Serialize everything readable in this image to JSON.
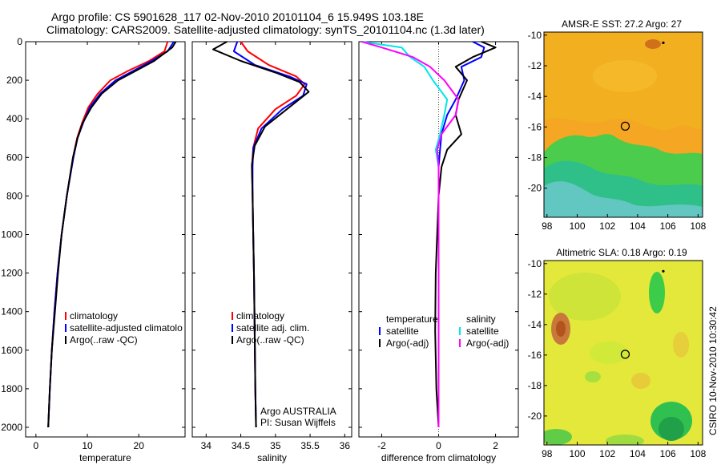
{
  "header": {
    "title_line1": "Argo profile: CS 5901628_117 02-Nov-2010 20101104_6 15.949S 103.18E",
    "title_line2": "Climatology: CARS2009. Satellite-adjusted climatology: synTS_20101104.nc (1.3d later)"
  },
  "credit": "CSIRO 10-Nov-2010 10:30:42",
  "colors": {
    "climatology": "#ff0000",
    "satellite": "#0000ff",
    "argo": "#000000",
    "salinity_satellite": "#00e5ee",
    "salinity_argo": "#ff00ff"
  },
  "chart_data": [
    {
      "type": "line",
      "id": "temperature",
      "xlabel": "temperature",
      "ylabel": "",
      "xlim": [
        -2,
        29
      ],
      "ylim": [
        2050,
        0
      ],
      "xticks": [
        0,
        10,
        20
      ],
      "yticks": [
        0,
        200,
        400,
        600,
        800,
        1000,
        1200,
        1400,
        1600,
        1800,
        2000
      ],
      "legend": [
        "climatology",
        "satellite-adjusted climatolo",
        "Argo(..raw -QC)"
      ],
      "legend_position": "lower-right",
      "series": [
        {
          "name": "climatology",
          "color": "#ff0000",
          "x": [
            25.6,
            25.0,
            22.0,
            18.0,
            14.5,
            12.0,
            10.2,
            9.0,
            8.0,
            7.2,
            6.0,
            5.0,
            4.2,
            3.6,
            3.1,
            2.7,
            2.4
          ],
          "y": [
            0,
            50,
            100,
            150,
            200,
            270,
            340,
            420,
            500,
            600,
            800,
            1000,
            1200,
            1400,
            1600,
            1800,
            2000
          ]
        },
        {
          "name": "satellite-adjusted climatology",
          "color": "#0000ff",
          "x": [
            26.8,
            25.6,
            22.5,
            19.0,
            15.5,
            12.5,
            10.5,
            9.2,
            8.1,
            7.3,
            6.0,
            5.0,
            4.2,
            3.6,
            3.1,
            2.7,
            2.4
          ],
          "y": [
            0,
            50,
            100,
            150,
            200,
            270,
            340,
            420,
            500,
            600,
            800,
            1000,
            1200,
            1400,
            1600,
            1800,
            2000
          ]
        },
        {
          "name": "Argo(..raw -QC)",
          "color": "#000000",
          "x": [
            27.2,
            26.5,
            23.0,
            19.5,
            16.0,
            12.8,
            10.8,
            9.1,
            8.1,
            7.2,
            6.0,
            5.0,
            4.3,
            3.7,
            3.1,
            2.7,
            2.4
          ],
          "y": [
            0,
            30,
            100,
            150,
            200,
            270,
            340,
            420,
            500,
            600,
            800,
            1000,
            1200,
            1400,
            1600,
            1800,
            2000
          ]
        }
      ]
    },
    {
      "type": "line",
      "id": "salinity",
      "xlabel": "salinity",
      "ylabel": "",
      "xlim": [
        33.8,
        36.1
      ],
      "ylim": [
        2050,
        0
      ],
      "xticks": [
        34,
        34.5,
        35,
        35.5,
        36
      ],
      "xticklabels": [
        "34",
        "34.5",
        "35",
        "35.5",
        "36"
      ],
      "legend": [
        "climatology",
        "satellite adj. clim.",
        "Argo(..raw -QC)"
      ],
      "legend_position": "lower-right",
      "annotations": [
        "Argo AUSTRALIA",
        "PI: Susan Wijffels"
      ],
      "series": [
        {
          "name": "climatology",
          "color": "#ff0000",
          "x": [
            34.5,
            34.6,
            34.9,
            35.3,
            35.42,
            35.3,
            35.0,
            34.75,
            34.68,
            34.66,
            34.67,
            34.68,
            34.69,
            34.7,
            34.71,
            34.72
          ],
          "y": [
            0,
            50,
            120,
            180,
            220,
            280,
            350,
            450,
            550,
            650,
            800,
            1000,
            1200,
            1500,
            1800,
            2000
          ]
        },
        {
          "name": "satellite adj. clim.",
          "color": "#0000ff",
          "x": [
            34.45,
            34.4,
            34.7,
            35.2,
            35.45,
            35.4,
            35.1,
            34.8,
            34.68,
            34.67,
            34.67,
            34.68,
            34.69,
            34.7,
            34.71,
            34.72
          ],
          "y": [
            0,
            50,
            120,
            180,
            220,
            280,
            350,
            450,
            550,
            650,
            800,
            1000,
            1200,
            1500,
            1800,
            2000
          ]
        },
        {
          "name": "Argo(..raw -QC)",
          "color": "#000000",
          "x": [
            34.3,
            34.1,
            34.5,
            35.0,
            35.35,
            35.48,
            35.2,
            34.85,
            34.7,
            34.66,
            34.67,
            34.68,
            34.69,
            34.7,
            34.71,
            34.72
          ],
          "y": [
            0,
            40,
            100,
            160,
            210,
            260,
            340,
            440,
            540,
            640,
            800,
            1000,
            1200,
            1500,
            1800,
            2000
          ]
        }
      ]
    },
    {
      "type": "line",
      "id": "difference",
      "xlabel": "difference from climatology",
      "ylabel": "",
      "xlim": [
        -2.8,
        2.8
      ],
      "ylim": [
        2050,
        0
      ],
      "xticks": [
        -2,
        0,
        2
      ],
      "legend_groups": [
        {
          "header": "temperature",
          "items": [
            "satellite",
            "Argo(-adj)"
          ]
        },
        {
          "header": "salinity",
          "items": [
            "satellite",
            "Argo(-adj)"
          ]
        }
      ],
      "legend_position": "lower-center",
      "series": [
        {
          "name": "temperature satellite",
          "color": "#0000ff",
          "x": [
            1.2,
            1.6,
            1.5,
            0.8,
            0.9,
            0.6,
            0.3,
            0.1,
            0.05,
            0.0,
            0.0,
            0.0,
            0.0,
            0.0,
            0.0,
            0.0
          ],
          "y": [
            0,
            30,
            80,
            130,
            200,
            300,
            380,
            480,
            560,
            650,
            800,
            1000,
            1200,
            1500,
            1800,
            2000
          ]
        },
        {
          "name": "temperature Argo(-adj)",
          "color": "#000000",
          "x": [
            1.5,
            2.0,
            1.2,
            0.6,
            1.0,
            0.7,
            0.6,
            0.8,
            0.3,
            0.1,
            0.0,
            -0.05,
            -0.1,
            -0.12,
            -0.08,
            0.0
          ],
          "y": [
            0,
            30,
            80,
            130,
            200,
            300,
            380,
            480,
            560,
            650,
            800,
            1000,
            1200,
            1500,
            1800,
            2000
          ]
        },
        {
          "name": "salinity satellite",
          "color": "#00e5ee",
          "x": [
            -2.7,
            -1.3,
            -1.0,
            -0.5,
            -0.2,
            0.3,
            0.2,
            0.05,
            -0.1,
            0.0,
            0.0,
            0.0,
            0.0,
            0.0,
            0.0,
            0.0
          ],
          "y": [
            0,
            30,
            80,
            130,
            200,
            300,
            380,
            480,
            560,
            650,
            800,
            1000,
            1200,
            1500,
            1800,
            2000
          ]
        },
        {
          "name": "salinity Argo(-adj)",
          "color": "#ff00ff",
          "x": [
            -2.7,
            -2.0,
            -0.9,
            -0.3,
            0.2,
            0.7,
            0.6,
            0.1,
            -0.05,
            0.0,
            0.0,
            0.0,
            0.0,
            0.0,
            0.0,
            0.0
          ],
          "y": [
            0,
            30,
            80,
            130,
            200,
            300,
            380,
            480,
            560,
            650,
            800,
            1000,
            1200,
            1500,
            1800,
            2000
          ]
        }
      ]
    },
    {
      "type": "heatmap",
      "id": "sst_map",
      "title": "AMSR-E SST: 27.2 Argo: 27",
      "xlim": [
        97.8,
        108.3
      ],
      "ylim": [
        -21.9,
        -9.8
      ],
      "xticks": [
        98,
        100,
        102,
        104,
        106,
        108
      ],
      "yticks": [
        -10,
        -12,
        -14,
        -16,
        -18,
        -20
      ],
      "marker": {
        "lon": 103.18,
        "lat": -15.949
      },
      "point": {
        "lon": 105.7,
        "lat": -10.5
      }
    },
    {
      "type": "heatmap",
      "id": "sla_map",
      "title": "Altimetric SLA: 0.18 Argo: 0.19",
      "xlim": [
        97.8,
        108.3
      ],
      "ylim": [
        -21.9,
        -9.8
      ],
      "xticks": [
        98,
        100,
        102,
        104,
        106,
        108
      ],
      "yticks": [
        -10,
        -12,
        -14,
        -16,
        -18,
        -20
      ],
      "marker": {
        "lon": 103.18,
        "lat": -15.949
      },
      "point": {
        "lon": 105.7,
        "lat": -10.5
      }
    }
  ]
}
